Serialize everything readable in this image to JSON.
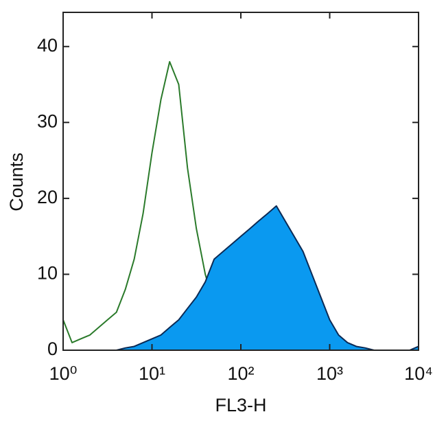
{
  "chart_data": {
    "type": "histogram-overlay",
    "xlabel": "FL3-H",
    "ylabel": "Counts",
    "xscale": "log",
    "xlim": [
      1,
      10000
    ],
    "ylim": [
      0,
      44.5
    ],
    "xticks": [
      {
        "value": 1,
        "label": "10⁰"
      },
      {
        "value": 10,
        "label": "10¹"
      },
      {
        "value": 100,
        "label": "10²"
      },
      {
        "value": 1000,
        "label": "10³"
      },
      {
        "value": 10000,
        "label": "10⁴"
      }
    ],
    "yticks": [
      0,
      10,
      20,
      30,
      40
    ],
    "x": [
      1,
      1.26,
      1.58,
      2.0,
      2.51,
      3.16,
      3.98,
      5.01,
      6.31,
      7.94,
      10,
      12.6,
      15.8,
      20.0,
      25.1,
      31.6,
      39.8,
      50.1,
      63.1,
      79.4,
      100,
      126,
      158,
      200,
      251,
      316,
      398,
      501,
      631,
      794,
      1000,
      1259,
      1585,
      1995,
      2512,
      3162,
      3981,
      5012,
      6310,
      7943,
      10000
    ],
    "series": [
      {
        "color": "#2a7a2a",
        "filled": false,
        "values": [
          4,
          1,
          1.5,
          2,
          3,
          4,
          5,
          8,
          12,
          18,
          26,
          33,
          38,
          35,
          24,
          16,
          10,
          6,
          4,
          3,
          2,
          1.5,
          1,
          1,
          0.5,
          0.5,
          0.3,
          0.2,
          0,
          0,
          0,
          0,
          0,
          0,
          0,
          0,
          0,
          0,
          0,
          0,
          0
        ]
      },
      {
        "color": "#0a99f0",
        "filled": true,
        "values": [
          0,
          0,
          0,
          0,
          0,
          0,
          0,
          0.3,
          0.5,
          1,
          1.5,
          2,
          3,
          4,
          5.5,
          7,
          9,
          12,
          13,
          14,
          15,
          16,
          17,
          18,
          19,
          17,
          15,
          13,
          10,
          7,
          4,
          2,
          1,
          0.5,
          0.3,
          0,
          0,
          0,
          0,
          0,
          0.5
        ]
      }
    ]
  }
}
